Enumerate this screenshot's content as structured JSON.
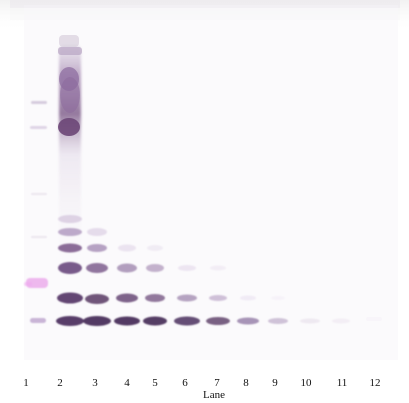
{
  "figure": {
    "axis_title": "Lane",
    "lanes": [
      "1",
      "2",
      "3",
      "4",
      "5",
      "6",
      "7",
      "8",
      "9",
      "10",
      "11",
      "12"
    ]
  }
}
